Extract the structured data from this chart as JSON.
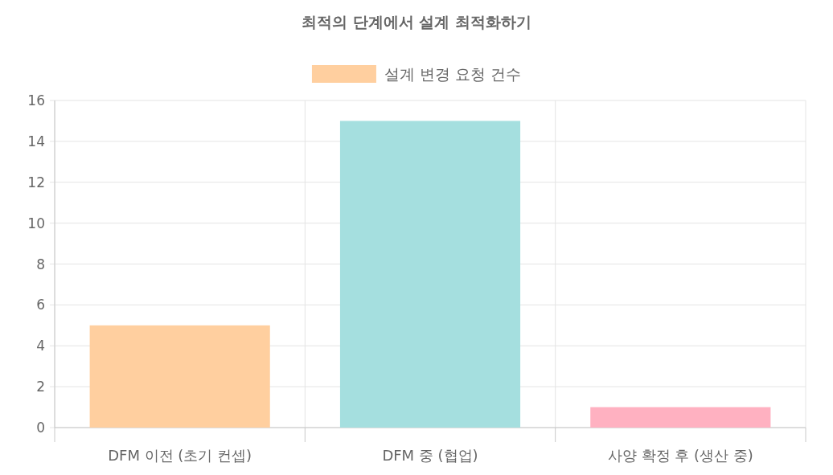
{
  "chart_data": {
    "type": "bar",
    "title": "최적의 단계에서 설계 최적화하기",
    "categories": [
      "DFM 이전 (초기 컨셉)",
      "DFM 중 (협업)",
      "사양 확정 후 (생산 중)"
    ],
    "series": [
      {
        "name": "설계 변경 요청 건수",
        "colors": [
          "#ffcf9f",
          "#a5dfdf",
          "#ffb1c1"
        ],
        "values": [
          5,
          15,
          1
        ]
      }
    ],
    "ylim": [
      0,
      16
    ],
    "yticks": [
      0,
      2,
      4,
      6,
      8,
      10,
      12,
      14,
      16
    ],
    "grid": true,
    "legend": "top"
  }
}
